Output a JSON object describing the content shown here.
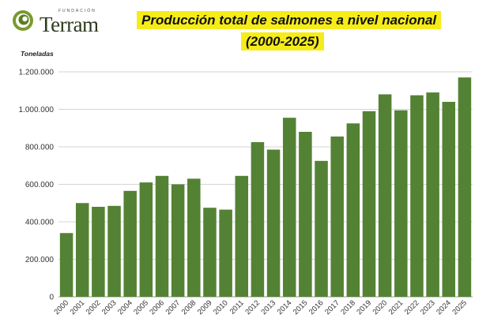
{
  "logo": {
    "small_text": "FUNDACIÓN",
    "word": "Terram",
    "icon": "spiral-leaf-icon"
  },
  "chart_data": {
    "type": "bar",
    "title": "Producción total de salmones a nivel nacional",
    "subtitle": "(2000-2025)",
    "ylabel": "Toneladas",
    "xlabel": "",
    "ylim": [
      0,
      1200000
    ],
    "yticks": [
      0,
      200000,
      400000,
      600000,
      800000,
      1000000,
      1200000
    ],
    "ytick_labels": [
      "0",
      "200.000",
      "400.000",
      "600.000",
      "800.000",
      "1.000.000",
      "1.200.000"
    ],
    "grid": true,
    "bar_color": "#548235",
    "categories": [
      "2000",
      "2001",
      "2002",
      "2003",
      "2004",
      "2005",
      "2006",
      "2007",
      "2008",
      "2009",
      "2010",
      "2011",
      "2012",
      "2013",
      "2014",
      "2015",
      "2016",
      "2017",
      "2018",
      "2019",
      "2020",
      "2021",
      "2022",
      "2023",
      "2024",
      "2025"
    ],
    "values": [
      340000,
      500000,
      480000,
      485000,
      565000,
      610000,
      645000,
      600000,
      630000,
      475000,
      465000,
      645000,
      825000,
      785000,
      955000,
      880000,
      725000,
      855000,
      925000,
      990000,
      1080000,
      995000,
      1075000,
      1090000,
      1040000,
      1170000
    ]
  }
}
